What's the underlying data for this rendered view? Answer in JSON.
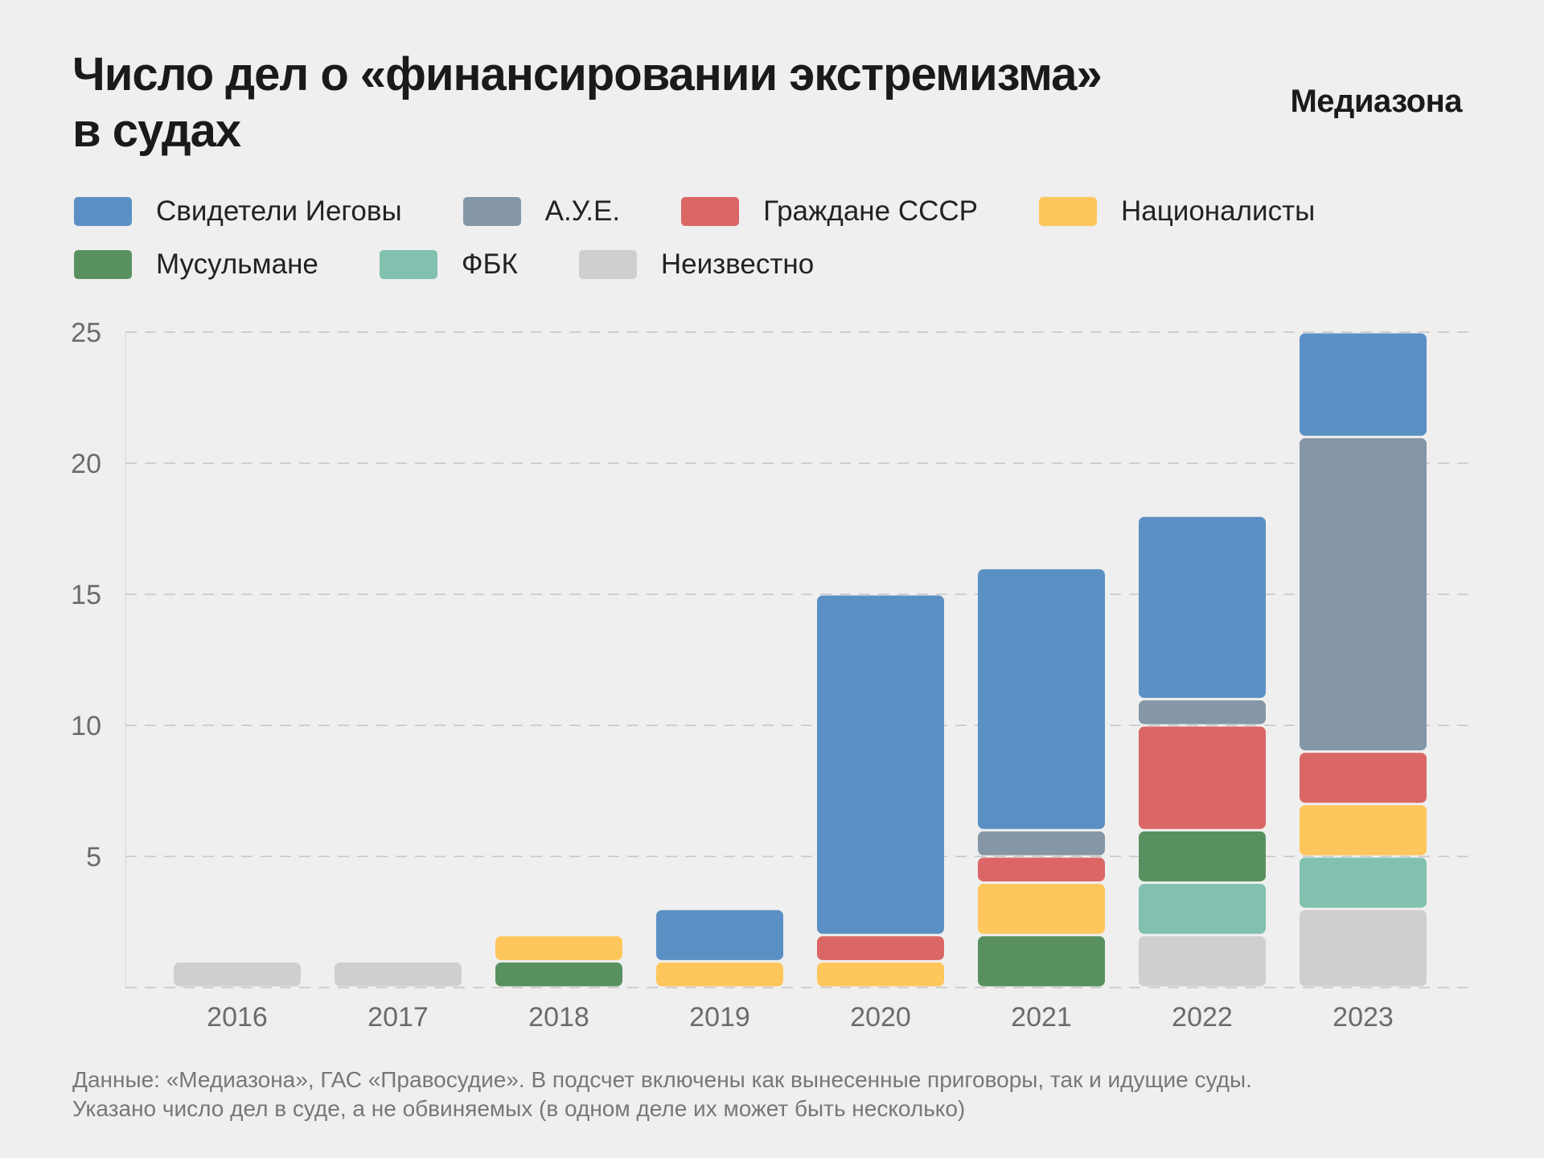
{
  "header": {
    "title_line1": "Число дел о «финансировании экстремизма»",
    "title_line2": "в судах",
    "brand": "Медиазона"
  },
  "footer": {
    "line1": "Данные: «Медиазона», ГАС «Правосудие». В подсчет включены как вынесенные приговоры, так и идущие суды.",
    "line2": "Указано число дел в суде, а не обвиняемых (в одном деле их может быть несколько)"
  },
  "chart_data": {
    "type": "bar",
    "stacked": true,
    "title": "Число дел о «финансировании экстремизма» в судах",
    "xlabel": "",
    "ylabel": "",
    "ylim": [
      0,
      25
    ],
    "yticks": [
      5,
      10,
      15,
      20,
      25
    ],
    "grid": true,
    "legend_position": "top-left",
    "categories": [
      "2016",
      "2017",
      "2018",
      "2019",
      "2020",
      "2021",
      "2022",
      "2023"
    ],
    "series": [
      {
        "name": "Неизвестно",
        "color": "#cfcfcf",
        "values": [
          1,
          1,
          0,
          0,
          0,
          0,
          2,
          3
        ]
      },
      {
        "name": "ФБК",
        "color": "#82c0b0",
        "values": [
          0,
          0,
          0,
          0,
          0,
          0,
          2,
          2
        ]
      },
      {
        "name": "Мусульмане",
        "color": "#58915f",
        "values": [
          0,
          0,
          1,
          0,
          0,
          2,
          2,
          0
        ]
      },
      {
        "name": "Националисты",
        "color": "#fec65b",
        "values": [
          0,
          0,
          1,
          1,
          1,
          2,
          0,
          2
        ]
      },
      {
        "name": "Граждане СССР",
        "color": "#db6666",
        "values": [
          0,
          0,
          0,
          0,
          1,
          1,
          4,
          2
        ]
      },
      {
        "name": "А.У.Е.",
        "color": "#8597a6",
        "values": [
          0,
          0,
          0,
          0,
          0,
          1,
          1,
          12
        ]
      },
      {
        "name": "Свидетели Иеговы",
        "color": "#5b90c4",
        "values": [
          0,
          0,
          0,
          2,
          13,
          10,
          7,
          4
        ]
      }
    ],
    "legend_order": [
      "Свидетели Иеговы",
      "А.У.Е.",
      "Граждане СССР",
      "Националисты",
      "Мусульмане",
      "ФБК",
      "Неизвестно"
    ]
  }
}
